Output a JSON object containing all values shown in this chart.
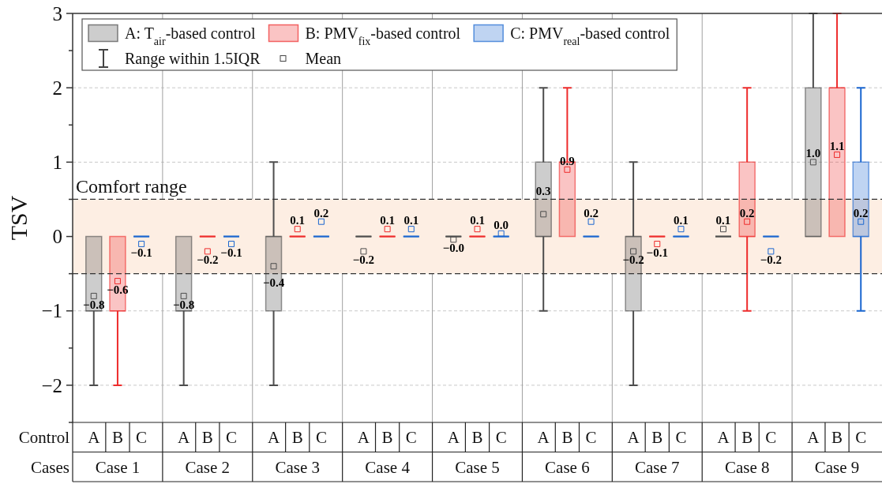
{
  "chart_data": {
    "type": "box",
    "ylabel": "TSV",
    "categories": [
      "Case 1",
      "Case 2",
      "Case 3",
      "Case 4",
      "Case 5",
      "Case 6",
      "Case 7",
      "Case 8",
      "Case 9"
    ],
    "series": [
      {
        "name": "A: T$_{air}$-based control",
        "color": "#4d4d4d",
        "boxes": [
          {
            "low": -2,
            "q1": -1,
            "median": -1,
            "q3": 0,
            "high": 0,
            "mean": -0.8
          },
          {
            "low": -2,
            "q1": -1,
            "median": -1,
            "q3": 0,
            "high": 0,
            "mean": -0.8
          },
          {
            "low": -2,
            "q1": -1,
            "median": 0,
            "q3": 0,
            "high": 1,
            "mean": -0.4
          },
          {
            "low": 0,
            "q1": 0,
            "median": 0,
            "q3": 0,
            "high": 0,
            "mean": -0.2
          },
          {
            "low": 0,
            "q1": 0,
            "median": 0,
            "q3": 0,
            "high": 0,
            "mean": -0.04
          },
          {
            "low": -1,
            "q1": 0,
            "median": 0,
            "q3": 1,
            "high": 2,
            "mean": 0.3
          },
          {
            "low": -2,
            "q1": -1,
            "median": 0,
            "q3": 0,
            "high": 1,
            "mean": -0.2
          },
          {
            "low": 0,
            "q1": 0,
            "median": 0,
            "q3": 0,
            "high": 0,
            "mean": 0.1
          },
          {
            "low": 0,
            "q1": 0,
            "median": 0,
            "q3": 2,
            "high": 3,
            "mean": 1.0
          }
        ],
        "value_labels": [
          "−0.8",
          "−0.8",
          "−0.4",
          "−0.2",
          "−0.0",
          "0.3",
          "−0.2",
          "0.1",
          "1.0"
        ]
      },
      {
        "name": "B: PMV$_{fix}$-based control",
        "color": "#ee2c2c",
        "boxes": [
          {
            "low": -2,
            "q1": -1,
            "median": -1,
            "q3": 0,
            "high": 0,
            "mean": -0.6
          },
          {
            "low": 0,
            "q1": 0,
            "median": 0,
            "q3": 0,
            "high": 0,
            "mean": -0.2
          },
          {
            "low": 0,
            "q1": 0,
            "median": 0,
            "q3": 0,
            "high": 0,
            "mean": 0.1
          },
          {
            "low": 0,
            "q1": 0,
            "median": 0,
            "q3": 0,
            "high": 0,
            "mean": 0.1
          },
          {
            "low": 0,
            "q1": 0,
            "median": 0,
            "q3": 0,
            "high": 0,
            "mean": 0.1
          },
          {
            "low": 0,
            "q1": 0,
            "median": 1,
            "q3": 1,
            "high": 2,
            "mean": 0.9
          },
          {
            "low": 0,
            "q1": 0,
            "median": 0,
            "q3": 0,
            "high": 0,
            "mean": -0.1
          },
          {
            "low": -1,
            "q1": 0,
            "median": 0,
            "q3": 1,
            "high": 2,
            "mean": 0.2
          },
          {
            "low": 0,
            "q1": 0,
            "median": 2,
            "q3": 2,
            "high": 3,
            "mean": 1.1
          }
        ],
        "value_labels": [
          "−0.6",
          "−0.2",
          "0.1",
          "0.1",
          "0.1",
          "0.9",
          "−0.1",
          "0.2",
          "1.1"
        ]
      },
      {
        "name": "C: PMV$_{real}$-based control",
        "color": "#1a66d0",
        "boxes": [
          {
            "low": 0,
            "q1": 0,
            "median": 0,
            "q3": 0,
            "high": 0,
            "mean": -0.1
          },
          {
            "low": 0,
            "q1": 0,
            "median": 0,
            "q3": 0,
            "high": 0,
            "mean": -0.1
          },
          {
            "low": 0,
            "q1": 0,
            "median": 0,
            "q3": 0,
            "high": 0,
            "mean": 0.2
          },
          {
            "low": 0,
            "q1": 0,
            "median": 0,
            "q3": 0,
            "high": 0,
            "mean": 0.1
          },
          {
            "low": 0,
            "q1": 0,
            "median": 0,
            "q3": 0,
            "high": 0,
            "mean": 0.04
          },
          {
            "low": 0,
            "q1": 0,
            "median": 0,
            "q3": 0,
            "high": 0,
            "mean": 0.2
          },
          {
            "low": 0,
            "q1": 0,
            "median": 0,
            "q3": 0,
            "high": 0,
            "mean": 0.1
          },
          {
            "low": 0,
            "q1": 0,
            "median": 0,
            "q3": 0,
            "high": 0,
            "mean": -0.2
          },
          {
            "low": -1,
            "q1": 0,
            "median": 0,
            "q3": 1,
            "high": 2,
            "mean": 0.2
          }
        ],
        "value_labels": [
          "−0.1",
          "−0.1",
          "0.2",
          "0.1",
          "0.0",
          "0.2",
          "0.1",
          "−0.2",
          "0.2"
        ]
      }
    ],
    "ylim": [
      -2.5,
      3
    ],
    "yticks": [
      {
        "value": -2.5,
        "label": null
      },
      -2,
      {
        "value": -1.5,
        "label": null
      },
      -1,
      {
        "value": -0.5,
        "label": null
      },
      0,
      {
        "value": 0.5,
        "label": null
      },
      1,
      {
        "value": 1.5,
        "label": null
      },
      2,
      {
        "value": 2.5,
        "label": null
      },
      3
    ],
    "grid": true,
    "legend": "top left",
    "marker": "square",
    "bands": [
      {
        "axis": "y",
        "from": -0.5,
        "to": 0.5,
        "label": "Comfort range",
        "color": "#fdeee3"
      }
    ],
    "annotations": [
      "Range within 1.5IQR",
      "Mean",
      "Control",
      "Cases",
      "A",
      "B",
      "C",
      "A",
      "B",
      "C",
      "A",
      "B",
      "C",
      "A",
      "B",
      "C",
      "A",
      "B",
      "C",
      "A",
      "B",
      "C",
      "A",
      "B",
      "C",
      "A",
      "B",
      "C",
      "A",
      "B",
      "C"
    ]
  }
}
